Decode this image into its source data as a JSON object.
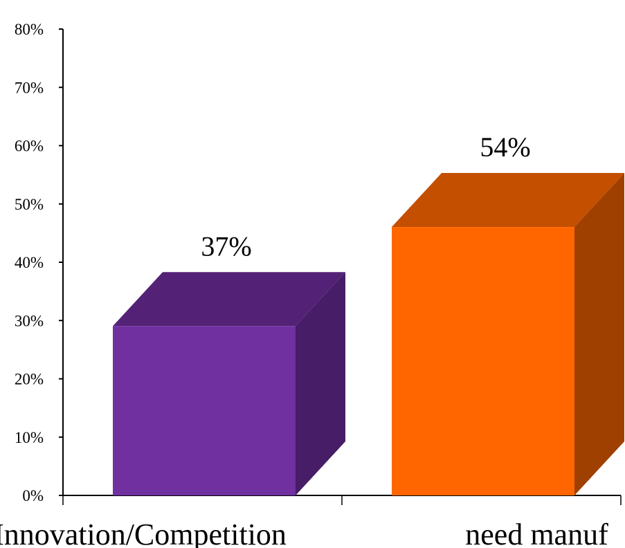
{
  "chart_data": {
    "type": "bar",
    "style": "3d-column",
    "categories": [
      "Innovation/Competition",
      "need manuf"
    ],
    "values": [
      37,
      54
    ],
    "data_labels": [
      "37%",
      "54%"
    ],
    "colors": {
      "bars": [
        "#7030a0",
        "#ff6600"
      ],
      "bar_top": [
        "#532277",
        "#c44f00"
      ],
      "bar_side": [
        "#461d66",
        "#a04000"
      ],
      "axis": "#000000"
    },
    "ylim": [
      0,
      80
    ],
    "yticks": [
      0,
      10,
      20,
      30,
      40,
      50,
      60,
      70,
      80
    ],
    "ytick_labels": [
      "0%",
      "10%",
      "20%",
      "30%",
      "40%",
      "50%",
      "60%",
      "70%",
      "80%"
    ],
    "grid": false,
    "legend": "none"
  }
}
